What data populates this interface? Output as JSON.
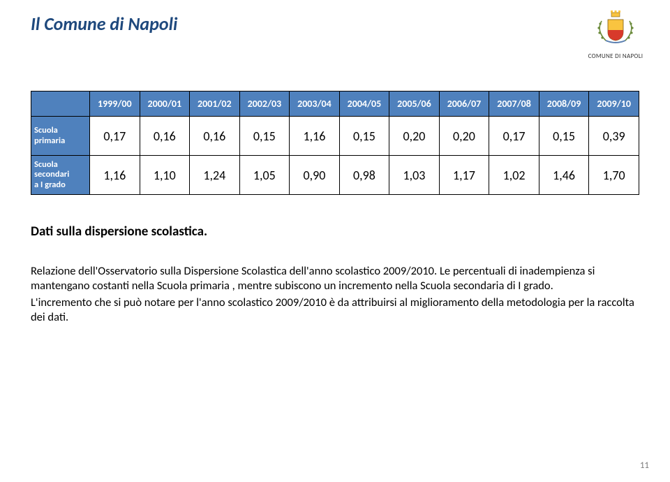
{
  "title": "Il Comune di Napoli",
  "logo": {
    "text": "COMUNE DI NAPOLI",
    "crown_color": "#f9c440",
    "shield_top": "#f9c440",
    "shield_bottom": "#d83a2b",
    "wreath_color": "#6a8a3a"
  },
  "table": {
    "header_bg": "#4f81bd",
    "header_fg": "#ffffff",
    "border_color": "#000000",
    "cell_bg": "#ffffff",
    "cell_fontsize": 18,
    "header_fontsize": 14,
    "rowlabel_fontsize": 12.5,
    "columns": [
      "1999/00",
      "2000/01",
      "2001/02",
      "2002/03",
      "2003/04",
      "2004/05",
      "2005/06",
      "2006/07",
      "2007/08",
      "2008/09",
      "2009/10"
    ],
    "rows": [
      {
        "label_lines": [
          "Scuola",
          "primaria"
        ],
        "values": [
          "0,17",
          "0,16",
          "0,16",
          "0,15",
          "1,16",
          "0,15",
          "0,20",
          "0,20",
          "0,17",
          "0,15",
          "0,39"
        ]
      },
      {
        "label_lines": [
          "Scuola",
          "secondari",
          "a I grado"
        ],
        "values": [
          "1,16",
          "1,10",
          "1,24",
          "1,05",
          "0,90",
          "0,98",
          "1,03",
          "1,17",
          "1,02",
          "1,46",
          "1,70"
        ]
      }
    ]
  },
  "section_heading": "Dati sulla dispersione scolastica.",
  "paragraphs": [
    "Relazione dell'Osservatorio sulla Dispersione Scolastica dell'anno scolastico 2009/2010. Le percentuali di inadempienza si mantengano costanti nella Scuola primaria , mentre subiscono un incremento nella Scuola secondaria di I grado.",
    "L'incremento che si può notare per l'anno scolastico 2009/2010 è da attribuirsi al miglioramento della metodologia per la raccolta dei dati."
  ],
  "page_number": "11"
}
